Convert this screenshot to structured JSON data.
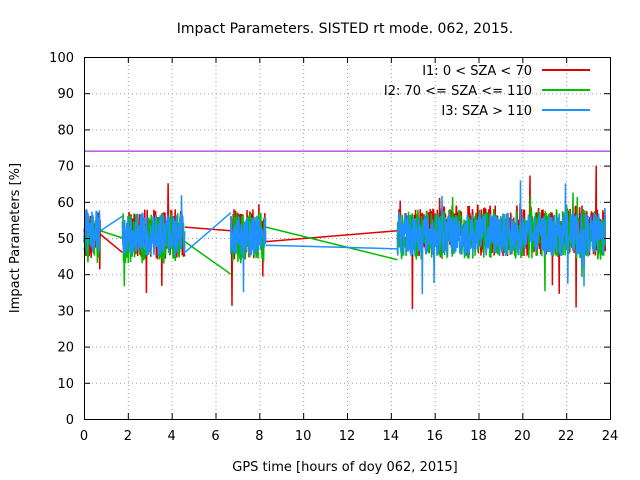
{
  "chart_data": {
    "type": "line",
    "title": "Impact Parameters. SISTED rt mode. 062, 2015.",
    "xlabel": "GPS time [hours of doy 062, 2015]",
    "ylabel": "Impact Parameters [%]",
    "xlim": [
      0,
      24
    ],
    "ylim": [
      0,
      100
    ],
    "xticks": [
      0,
      2,
      4,
      6,
      8,
      10,
      12,
      14,
      16,
      18,
      20,
      22,
      24
    ],
    "yticks": [
      0,
      10,
      20,
      30,
      40,
      50,
      60,
      70,
      80,
      90,
      100
    ],
    "grid": true,
    "legend_position": "top-right",
    "reference_line": {
      "value": 74,
      "color": "#9400D3"
    },
    "series": [
      {
        "name": "I1: 0 < SZA < 70",
        "color": "#DD0000",
        "noise_amplitude": 7,
        "spike_range": [
          30,
          70
        ],
        "segments": [
          [
            0.0,
            0.75,
            51
          ],
          [
            1.75,
            4.6,
            51
          ],
          [
            6.7,
            8.3,
            51
          ],
          [
            14.3,
            23.8,
            52
          ]
        ],
        "bridges": [
          [
            0.75,
            51,
            1.75,
            46
          ],
          [
            4.6,
            53,
            6.7,
            52
          ],
          [
            8.3,
            49,
            14.3,
            52
          ]
        ]
      },
      {
        "name": "I2: 70 <= SZA <= 110",
        "color": "#00BB00",
        "noise_amplitude": 7,
        "spike_range": [
          33,
          64
        ],
        "segments": [
          [
            0.0,
            0.75,
            50
          ],
          [
            1.75,
            4.6,
            50
          ],
          [
            6.7,
            8.3,
            50
          ],
          [
            14.3,
            23.8,
            51
          ]
        ],
        "bridges": [
          [
            0.75,
            52,
            1.75,
            50
          ],
          [
            4.6,
            49,
            6.7,
            40
          ],
          [
            8.3,
            53,
            14.3,
            44
          ]
        ]
      },
      {
        "name": "I3: SZA > 110",
        "color": "#1E90FF",
        "noise_amplitude": 6,
        "spike_range": [
          32,
          66
        ],
        "segments": [
          [
            0.0,
            0.75,
            52
          ],
          [
            1.75,
            4.6,
            51
          ],
          [
            6.7,
            8.3,
            51
          ],
          [
            14.3,
            23.8,
            51
          ]
        ],
        "bridges": [
          [
            0.75,
            52,
            1.75,
            56
          ],
          [
            4.6,
            46,
            6.7,
            57
          ],
          [
            8.3,
            48,
            14.3,
            47
          ]
        ]
      }
    ]
  }
}
